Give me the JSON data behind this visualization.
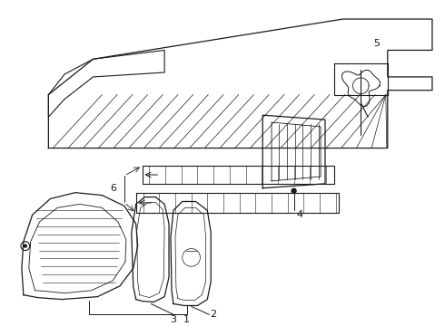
{
  "background_color": "#ffffff",
  "line_color": "#000000",
  "figsize": [
    4.9,
    3.6
  ],
  "dpi": 100,
  "label_fontsize": 8
}
